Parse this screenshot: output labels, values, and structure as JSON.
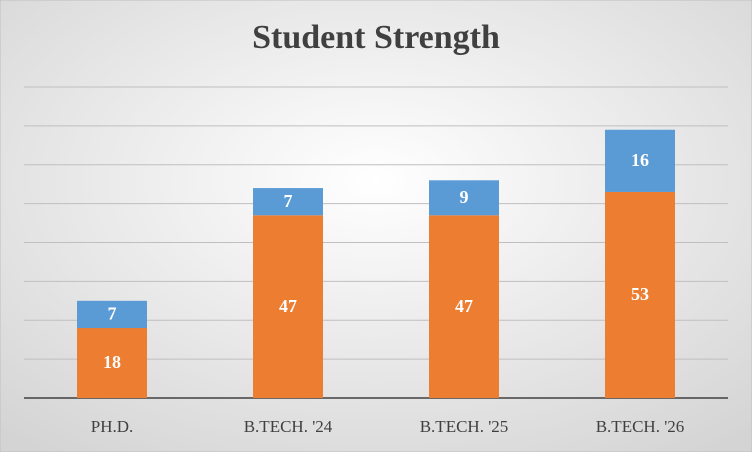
{
  "chart_data": {
    "type": "stacked_bar",
    "title": "Student Strength",
    "categories": [
      "PH.D.",
      "B.TECH. '24",
      "B.TECH. '25",
      "B.TECH. '26"
    ],
    "series": [
      {
        "color": "#ED7D31",
        "values": [
          18,
          47,
          47,
          53
        ]
      },
      {
        "color": "#5B9BD5",
        "values": [
          7,
          7,
          9,
          16
        ]
      }
    ],
    "ylim": [
      0,
      80
    ],
    "yticks": [
      0,
      10,
      20,
      30,
      40,
      50,
      60,
      70,
      80
    ],
    "grid": true,
    "ytick_labels": false
  }
}
